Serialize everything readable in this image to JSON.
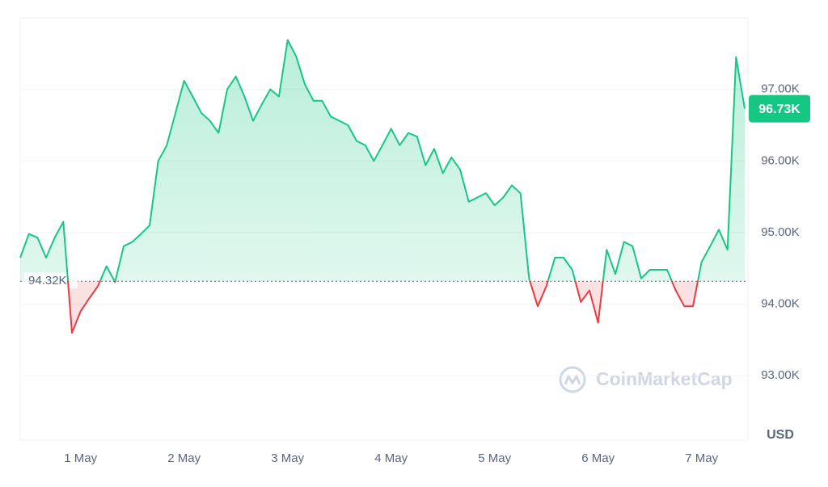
{
  "chart_data": {
    "type": "line",
    "categories": [
      null,
      null,
      null,
      null,
      null,
      null,
      null,
      "1 May",
      null,
      null,
      null,
      null,
      null,
      null,
      null,
      null,
      null,
      null,
      null,
      "2 May",
      null,
      null,
      null,
      null,
      null,
      null,
      null,
      null,
      null,
      null,
      null,
      "3 May",
      null,
      null,
      null,
      null,
      null,
      null,
      null,
      null,
      null,
      null,
      null,
      "4 May",
      null,
      null,
      null,
      null,
      null,
      null,
      null,
      null,
      null,
      null,
      null,
      "5 May",
      null,
      null,
      null,
      null,
      null,
      null,
      null,
      null,
      null,
      null,
      null,
      "6 May",
      null,
      null,
      null,
      null,
      null,
      null,
      null,
      null,
      null,
      null,
      null,
      "7 May",
      null,
      null,
      null,
      null,
      null
    ],
    "values": [
      94.65,
      94.98,
      94.93,
      94.65,
      94.93,
      95.15,
      93.6,
      93.9,
      94.08,
      94.25,
      94.53,
      94.31,
      94.81,
      94.87,
      94.98,
      95.1,
      96.0,
      96.22,
      96.67,
      97.12,
      96.9,
      96.67,
      96.56,
      96.39,
      97.0,
      97.18,
      96.9,
      96.56,
      96.79,
      97.0,
      96.9,
      97.69,
      97.46,
      97.07,
      96.84,
      96.84,
      96.62,
      96.56,
      96.5,
      96.28,
      96.22,
      96.0,
      96.22,
      96.45,
      96.22,
      96.39,
      96.34,
      95.94,
      96.17,
      95.83,
      96.05,
      95.88,
      95.43,
      95.49,
      95.55,
      95.38,
      95.49,
      95.66,
      95.55,
      94.36,
      93.97,
      94.25,
      94.65,
      94.65,
      94.48,
      94.03,
      94.19,
      93.74,
      94.76,
      94.42,
      94.87,
      94.81,
      94.36,
      94.48,
      94.48,
      94.48,
      94.19,
      93.97,
      93.97,
      94.59,
      94.81,
      95.04,
      94.76,
      97.45,
      96.73
    ],
    "up_color": "#16c784",
    "down_color": "#ea3943",
    "baseline": {
      "value": 94.32,
      "label": "94.32K"
    },
    "price_tag": {
      "value": 96.73,
      "label": "96.73K"
    },
    "ylim": [
      92.1,
      98.0
    ],
    "yticks": [
      {
        "value": 93,
        "label": "93.00K"
      },
      {
        "value": 94,
        "label": "94.00K"
      },
      {
        "value": 95,
        "label": "95.00K"
      },
      {
        "value": 96,
        "label": "96.00K"
      },
      {
        "value": 97,
        "label": "97.00K"
      }
    ],
    "y_unit": "USD",
    "watermark": "CoinMarketCap",
    "grid": true
  }
}
